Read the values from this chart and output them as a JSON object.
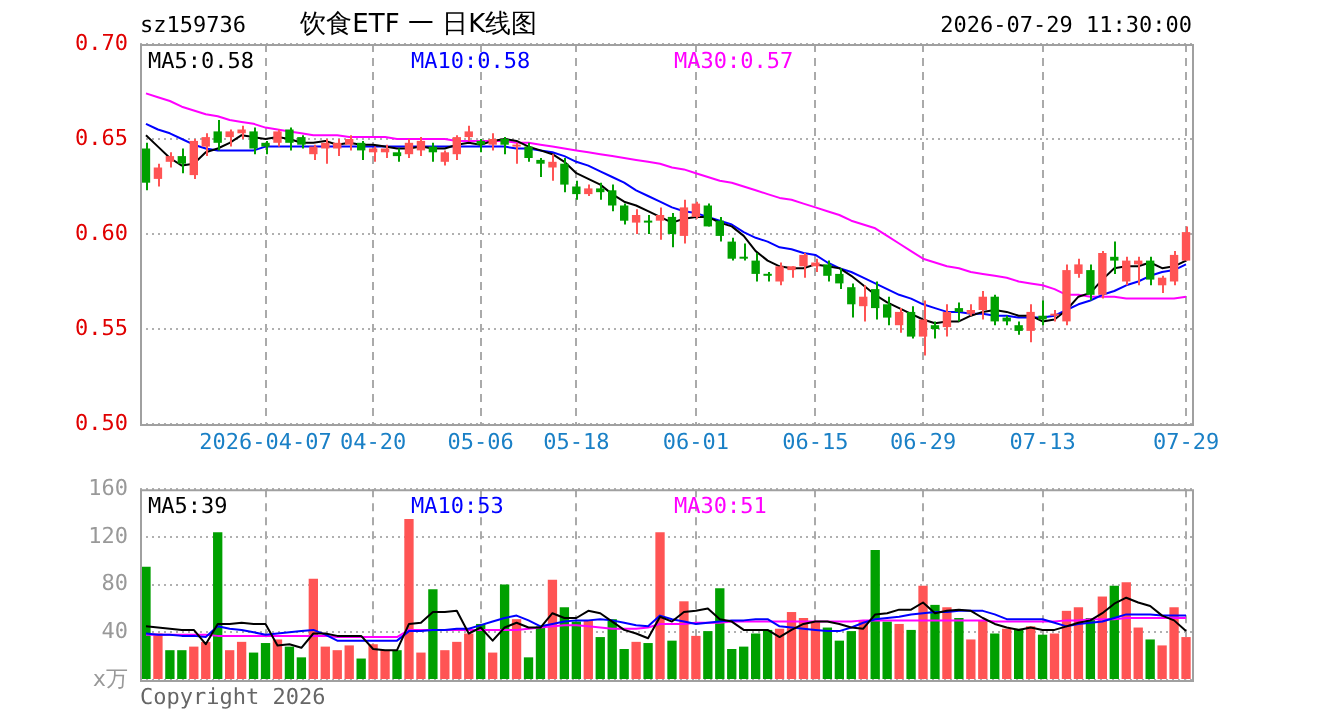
{
  "chart_data": [
    {
      "type": "candlestick",
      "title": "饮食ETF 一 日K线图",
      "annotations": [
        "sz159736",
        "2026-07-29 11:30:00"
      ],
      "categories": [
        null,
        null,
        null,
        null,
        null,
        null,
        null,
        null,
        null,
        null,
        "2026-04-07",
        null,
        null,
        null,
        null,
        null,
        null,
        null,
        null,
        "04-20",
        null,
        null,
        null,
        null,
        null,
        null,
        null,
        null,
        "05-06",
        null,
        null,
        null,
        null,
        null,
        null,
        null,
        "05-18",
        null,
        null,
        null,
        null,
        null,
        null,
        null,
        null,
        null,
        "06-01",
        null,
        null,
        null,
        null,
        null,
        null,
        null,
        null,
        null,
        "06-15",
        null,
        null,
        null,
        null,
        null,
        null,
        null,
        null,
        "06-29",
        null,
        null,
        null,
        null,
        null,
        null,
        null,
        null,
        null,
        "07-13",
        null,
        null,
        null,
        null,
        null,
        null,
        null,
        null,
        null,
        null,
        null,
        "07-29"
      ],
      "ylim": [
        0.5,
        0.7
      ],
      "yticks": [
        {
          "value": 0.5,
          "label": "0.50"
        },
        {
          "value": 0.55,
          "label": "0.55"
        },
        {
          "value": 0.6,
          "label": "0.60"
        },
        {
          "value": 0.65,
          "label": "0.65"
        },
        {
          "value": 0.7,
          "label": "0.70"
        }
      ],
      "grid": true,
      "legend": "top left",
      "marker": "none",
      "series": [
        {
          "type": "candlestick",
          "ohlc": [
            [
              0.645,
              0.648,
              0.623,
              0.627
            ],
            [
              0.629,
              0.637,
              0.625,
              0.635
            ],
            [
              0.638,
              0.643,
              0.635,
              0.641
            ],
            [
              0.641,
              0.645,
              0.632,
              0.637
            ],
            [
              0.631,
              0.65,
              0.629,
              0.649
            ],
            [
              0.646,
              0.653,
              0.641,
              0.651
            ],
            [
              0.654,
              0.66,
              0.644,
              0.648
            ],
            [
              0.651,
              0.655,
              0.646,
              0.654
            ],
            [
              0.653,
              0.657,
              0.65,
              0.655
            ],
            [
              0.654,
              0.656,
              0.642,
              0.645
            ],
            [
              0.648,
              0.649,
              0.642,
              0.646
            ],
            [
              0.648,
              0.655,
              0.646,
              0.654
            ],
            [
              0.655,
              0.656,
              0.644,
              0.648
            ],
            [
              0.651,
              0.652,
              0.645,
              0.647
            ],
            [
              0.642,
              0.647,
              0.639,
              0.646
            ],
            [
              0.645,
              0.65,
              0.637,
              0.648
            ],
            [
              0.645,
              0.65,
              0.641,
              0.648
            ],
            [
              0.647,
              0.652,
              0.644,
              0.65
            ],
            [
              0.648,
              0.649,
              0.639,
              0.644
            ],
            [
              0.643,
              0.646,
              0.638,
              0.645
            ],
            [
              0.643,
              0.647,
              0.64,
              0.645
            ],
            [
              0.643,
              0.645,
              0.638,
              0.641
            ],
            [
              0.642,
              0.65,
              0.64,
              0.648
            ],
            [
              0.644,
              0.651,
              0.641,
              0.649
            ],
            [
              0.646,
              0.648,
              0.638,
              0.643
            ],
            [
              0.638,
              0.644,
              0.636,
              0.643
            ],
            [
              0.642,
              0.652,
              0.639,
              0.651
            ],
            [
              0.651,
              0.657,
              0.649,
              0.654
            ],
            [
              0.649,
              0.65,
              0.643,
              0.647
            ],
            [
              0.647,
              0.653,
              0.644,
              0.65
            ],
            [
              0.65,
              0.651,
              0.642,
              0.647
            ],
            [
              0.646,
              0.648,
              0.637,
              0.647
            ],
            [
              0.646,
              0.648,
              0.638,
              0.64
            ],
            [
              0.639,
              0.64,
              0.63,
              0.637
            ],
            [
              0.635,
              0.642,
              0.628,
              0.638
            ],
            [
              0.637,
              0.64,
              0.622,
              0.626
            ],
            [
              0.625,
              0.628,
              0.618,
              0.621
            ],
            [
              0.621,
              0.626,
              0.62,
              0.624
            ],
            [
              0.624,
              0.627,
              0.618,
              0.622
            ],
            [
              0.623,
              0.626,
              0.612,
              0.615
            ],
            [
              0.615,
              0.616,
              0.605,
              0.607
            ],
            [
              0.606,
              0.613,
              0.6,
              0.61
            ],
            [
              0.607,
              0.61,
              0.6,
              0.606
            ],
            [
              0.607,
              0.614,
              0.597,
              0.61
            ],
            [
              0.609,
              0.611,
              0.593,
              0.6
            ],
            [
              0.599,
              0.618,
              0.595,
              0.614
            ],
            [
              0.609,
              0.617,
              0.608,
              0.616
            ],
            [
              0.615,
              0.616,
              0.604,
              0.604
            ],
            [
              0.607,
              0.609,
              0.596,
              0.599
            ],
            [
              0.596,
              0.598,
              0.586,
              0.587
            ],
            [
              0.588,
              0.595,
              0.586,
              0.587
            ],
            [
              0.586,
              0.59,
              0.575,
              0.579
            ],
            [
              0.579,
              0.58,
              0.575,
              0.578
            ],
            [
              0.575,
              0.585,
              0.573,
              0.583
            ],
            [
              0.581,
              0.583,
              0.577,
              0.583
            ],
            [
              0.583,
              0.59,
              0.577,
              0.589
            ],
            [
              0.583,
              0.587,
              0.58,
              0.585
            ],
            [
              0.584,
              0.586,
              0.575,
              0.578
            ],
            [
              0.579,
              0.582,
              0.571,
              0.574
            ],
            [
              0.572,
              0.574,
              0.556,
              0.563
            ],
            [
              0.562,
              0.573,
              0.554,
              0.567
            ],
            [
              0.571,
              0.575,
              0.555,
              0.561
            ],
            [
              0.563,
              0.567,
              0.552,
              0.556
            ],
            [
              0.552,
              0.561,
              0.548,
              0.559
            ],
            [
              0.559,
              0.562,
              0.545,
              0.546
            ],
            [
              0.546,
              0.565,
              0.536,
              0.555
            ],
            [
              0.552,
              0.554,
              0.545,
              0.55
            ],
            [
              0.551,
              0.563,
              0.546,
              0.559
            ],
            [
              0.561,
              0.564,
              0.554,
              0.559
            ],
            [
              0.558,
              0.563,
              0.557,
              0.56
            ],
            [
              0.56,
              0.57,
              0.555,
              0.567
            ],
            [
              0.567,
              0.568,
              0.552,
              0.554
            ],
            [
              0.556,
              0.557,
              0.552,
              0.554
            ],
            [
              0.552,
              0.554,
              0.547,
              0.549
            ],
            [
              0.549,
              0.563,
              0.543,
              0.559
            ],
            [
              0.557,
              0.565,
              0.552,
              0.555
            ],
            [
              0.557,
              0.56,
              0.554,
              0.558
            ],
            [
              0.554,
              0.584,
              0.552,
              0.581
            ],
            [
              0.579,
              0.587,
              0.577,
              0.584
            ],
            [
              0.581,
              0.584,
              0.565,
              0.568
            ],
            [
              0.568,
              0.591,
              0.566,
              0.59
            ],
            [
              0.588,
              0.596,
              0.579,
              0.586
            ],
            [
              0.575,
              0.588,
              0.573,
              0.586
            ],
            [
              0.584,
              0.588,
              0.573,
              0.586
            ],
            [
              0.586,
              0.588,
              0.573,
              0.576
            ],
            [
              0.573,
              0.578,
              0.569,
              0.577
            ],
            [
              0.575,
              0.591,
              0.573,
              0.589
            ],
            [
              0.586,
              0.604,
              0.586,
              0.601
            ]
          ],
          "colors": [
            "#00a000",
            "#ff5454",
            "#ff5454",
            "#00a000",
            "#ff5454",
            "#ff5454",
            "#00a000",
            "#ff5454",
            "#ff5454",
            "#00a000",
            "#00a000",
            "#ff5454",
            "#00a000",
            "#00a000",
            "#ff5454",
            "#ff5454",
            "#ff5454",
            "#ff5454",
            "#00a000",
            "#ff5454",
            "#ff5454",
            "#00a000",
            "#ff5454",
            "#ff5454",
            "#00a000",
            "#ff5454",
            "#ff5454",
            "#ff5454",
            "#00a000",
            "#ff5454",
            "#00a000",
            "#ff5454",
            "#00a000",
            "#00a000",
            "#ff5454",
            "#00a000",
            "#00a000",
            "#ff5454",
            "#00a000",
            "#00a000",
            "#00a000",
            "#ff5454",
            "#00a000",
            "#ff5454",
            "#00a000",
            "#ff5454",
            "#ff5454",
            "#00a000",
            "#00a000",
            "#00a000",
            "#00a000",
            "#00a000",
            "#00a000",
            "#ff5454",
            "#ff5454",
            "#ff5454",
            "#ff5454",
            "#00a000",
            "#00a000",
            "#00a000",
            "#ff5454",
            "#00a000",
            "#00a000",
            "#ff5454",
            "#00a000",
            "#ff5454",
            "#00a000",
            "#ff5454",
            "#00a000",
            "#ff5454",
            "#ff5454",
            "#00a000",
            "#00a000",
            "#00a000",
            "#ff5454",
            "#00a000",
            "#ff5454",
            "#ff5454",
            "#ff5454",
            "#00a000",
            "#ff5454",
            "#00a000",
            "#ff5454",
            "#ff5454",
            "#00a000",
            "#ff5454",
            "#ff5454",
            "#ff5454"
          ]
        },
        {
          "type": "line",
          "name": "MA5:0.58",
          "color": "#000000",
          "values": [
            0.652,
            0.646,
            0.64,
            0.636,
            0.637,
            0.643,
            0.645,
            0.648,
            0.652,
            0.651,
            0.65,
            0.651,
            0.65,
            0.648,
            0.648,
            0.649,
            0.647,
            0.648,
            0.647,
            0.647,
            0.646,
            0.645,
            0.645,
            0.646,
            0.645,
            0.645,
            0.647,
            0.648,
            0.647,
            0.649,
            0.65,
            0.649,
            0.646,
            0.644,
            0.642,
            0.638,
            0.632,
            0.629,
            0.626,
            0.621,
            0.617,
            0.615,
            0.612,
            0.609,
            0.606,
            0.608,
            0.609,
            0.609,
            0.606,
            0.604,
            0.599,
            0.591,
            0.586,
            0.583,
            0.582,
            0.582,
            0.584,
            0.583,
            0.582,
            0.578,
            0.573,
            0.568,
            0.564,
            0.561,
            0.558,
            0.555,
            0.553,
            0.554,
            0.554,
            0.557,
            0.559,
            0.56,
            0.559,
            0.557,
            0.557,
            0.554,
            0.555,
            0.56,
            0.567,
            0.569,
            0.576,
            0.582,
            0.583,
            0.583,
            0.585,
            0.582,
            0.583,
            0.586
          ]
        },
        {
          "type": "line",
          "name": "MA10:0.58",
          "color": "#0000ff",
          "values": [
            0.658,
            0.655,
            0.653,
            0.65,
            0.647,
            0.645,
            0.644,
            0.644,
            0.644,
            0.644,
            0.646,
            0.646,
            0.646,
            0.646,
            0.646,
            0.646,
            0.646,
            0.646,
            0.646,
            0.646,
            0.646,
            0.646,
            0.646,
            0.646,
            0.646,
            0.646,
            0.646,
            0.646,
            0.646,
            0.646,
            0.646,
            0.645,
            0.645,
            0.644,
            0.643,
            0.641,
            0.638,
            0.636,
            0.633,
            0.63,
            0.627,
            0.623,
            0.62,
            0.617,
            0.614,
            0.612,
            0.611,
            0.609,
            0.607,
            0.605,
            0.601,
            0.598,
            0.596,
            0.593,
            0.592,
            0.59,
            0.589,
            0.585,
            0.582,
            0.58,
            0.577,
            0.574,
            0.571,
            0.568,
            0.566,
            0.563,
            0.561,
            0.559,
            0.559,
            0.558,
            0.558,
            0.557,
            0.557,
            0.556,
            0.556,
            0.556,
            0.557,
            0.56,
            0.563,
            0.565,
            0.568,
            0.57,
            0.573,
            0.575,
            0.578,
            0.58,
            0.581,
            0.584
          ]
        },
        {
          "type": "line",
          "name": "MA30:0.57",
          "color": "#ff00ff",
          "values": [
            0.674,
            0.672,
            0.67,
            0.667,
            0.665,
            0.663,
            0.662,
            0.66,
            0.659,
            0.658,
            0.656,
            0.655,
            0.654,
            0.653,
            0.652,
            0.652,
            0.652,
            0.651,
            0.651,
            0.651,
            0.651,
            0.65,
            0.65,
            0.65,
            0.65,
            0.65,
            0.649,
            0.649,
            0.649,
            0.649,
            0.649,
            0.648,
            0.648,
            0.647,
            0.646,
            0.645,
            0.644,
            0.643,
            0.642,
            0.641,
            0.64,
            0.639,
            0.638,
            0.637,
            0.635,
            0.634,
            0.632,
            0.63,
            0.628,
            0.627,
            0.625,
            0.623,
            0.621,
            0.619,
            0.618,
            0.616,
            0.614,
            0.612,
            0.61,
            0.607,
            0.605,
            0.603,
            0.599,
            0.595,
            0.591,
            0.587,
            0.585,
            0.583,
            0.582,
            0.58,
            0.579,
            0.578,
            0.577,
            0.575,
            0.574,
            0.573,
            0.571,
            0.568,
            0.568,
            0.567,
            0.567,
            0.567,
            0.566,
            0.566,
            0.566,
            0.566,
            0.566,
            0.567
          ]
        }
      ]
    },
    {
      "type": "bar",
      "annotations": [
        "Copyright 2026"
      ],
      "categories": [
        null,
        null,
        null,
        null,
        null,
        null,
        null,
        null,
        null,
        null,
        null,
        null,
        null,
        null,
        null,
        null,
        null,
        null,
        null,
        null,
        null,
        null,
        null,
        null,
        null,
        null,
        null,
        null,
        null,
        null,
        null,
        null,
        null,
        null,
        null,
        null,
        null,
        null,
        null,
        null,
        null,
        null,
        null,
        null,
        null,
        null,
        null,
        null,
        null,
        null,
        null,
        null,
        null,
        null,
        null,
        null,
        null,
        null,
        null,
        null,
        null,
        null,
        null,
        null,
        null,
        null,
        null,
        null,
        null,
        null,
        null,
        null,
        null,
        null,
        null,
        null,
        null,
        null,
        null,
        null,
        null,
        null,
        null,
        null,
        null,
        null,
        null,
        null
      ],
      "tick_labels": "y",
      "ylim": [
        0,
        160
      ],
      "yticks": [
        {
          "value": 0,
          "label": "x万"
        },
        40,
        80,
        120,
        160
      ],
      "grid": true,
      "legend": "top left",
      "marker": "none",
      "series": [
        {
          "type": "bar",
          "values": [
            95,
            39,
            25,
            25,
            28,
            32,
            124,
            25,
            32,
            23,
            31,
            34,
            28,
            19,
            85,
            28,
            25,
            29,
            18,
            30,
            25,
            25,
            135,
            23,
            76,
            25,
            32,
            39,
            47,
            23,
            80,
            51,
            19,
            45,
            84,
            61,
            49,
            50,
            36,
            51,
            26,
            32,
            31,
            124,
            33,
            66,
            37,
            41,
            77,
            26,
            28,
            39,
            42,
            43,
            57,
            52,
            49,
            44,
            33,
            41,
            50,
            109,
            49,
            47,
            42,
            79,
            63,
            61,
            52,
            34,
            50,
            39,
            43,
            43,
            45,
            38,
            39,
            58,
            61,
            52,
            70,
            79,
            82,
            44,
            34,
            29,
            61,
            36
          ],
          "colors": [
            "#00a000",
            "#ff5454",
            "#00a000",
            "#00a000",
            "#ff5454",
            "#ff5454",
            "#00a000",
            "#ff5454",
            "#ff5454",
            "#00a000",
            "#00a000",
            "#ff5454",
            "#00a000",
            "#00a000",
            "#ff5454",
            "#ff5454",
            "#ff5454",
            "#ff5454",
            "#00a000",
            "#ff5454",
            "#ff5454",
            "#00a000",
            "#ff5454",
            "#ff5454",
            "#00a000",
            "#ff5454",
            "#ff5454",
            "#ff5454",
            "#00a000",
            "#ff5454",
            "#00a000",
            "#ff5454",
            "#00a000",
            "#00a000",
            "#ff5454",
            "#00a000",
            "#00a000",
            "#ff5454",
            "#00a000",
            "#00a000",
            "#00a000",
            "#ff5454",
            "#00a000",
            "#ff5454",
            "#00a000",
            "#ff5454",
            "#ff5454",
            "#00a000",
            "#00a000",
            "#00a000",
            "#00a000",
            "#00a000",
            "#00a000",
            "#ff5454",
            "#ff5454",
            "#ff5454",
            "#ff5454",
            "#00a000",
            "#00a000",
            "#00a000",
            "#ff5454",
            "#00a000",
            "#00a000",
            "#ff5454",
            "#00a000",
            "#ff5454",
            "#00a000",
            "#ff5454",
            "#00a000",
            "#ff5454",
            "#ff5454",
            "#00a000",
            "#ff5454",
            "#00a000",
            "#ff5454",
            "#00a000",
            "#ff5454",
            "#ff5454",
            "#ff5454",
            "#00a000",
            "#ff5454",
            "#00a000",
            "#ff5454",
            "#ff5454",
            "#00a000",
            "#ff5454",
            "#ff5454",
            "#ff5454"
          ]
        },
        {
          "type": "line",
          "name": "MA5:39",
          "color": "#000000",
          "values": [
            45,
            44,
            43,
            42,
            42,
            30,
            47,
            47,
            48,
            47,
            47,
            29,
            30,
            27,
            39,
            39,
            37,
            37,
            37,
            26,
            25,
            25,
            47,
            48,
            57,
            57,
            58,
            39,
            44,
            33,
            44,
            48,
            44,
            44,
            56,
            52,
            52,
            58,
            56,
            49,
            42,
            39,
            35,
            53,
            49,
            57,
            58,
            60,
            51,
            49,
            42,
            42,
            42,
            36,
            42,
            47,
            49,
            49,
            47,
            44,
            43,
            55,
            56,
            59,
            59,
            65,
            56,
            58,
            59,
            58,
            52,
            47,
            44,
            42,
            44,
            42,
            42,
            45,
            48,
            50,
            56,
            64,
            69,
            65,
            62,
            54,
            50,
            41
          ]
        },
        {
          "type": "line",
          "name": "MA10:53",
          "color": "#0000ff",
          "values": [
            39,
            38,
            38,
            37,
            37,
            36,
            45,
            43,
            42,
            40,
            38,
            39,
            40,
            41,
            42,
            38,
            33,
            33,
            33,
            33,
            33,
            33,
            41,
            41,
            42,
            42,
            43,
            43,
            46,
            49,
            52,
            54,
            50,
            45,
            47,
            49,
            50,
            50,
            51,
            50,
            48,
            46,
            45,
            54,
            51,
            49,
            47,
            48,
            49,
            50,
            50,
            51,
            51,
            45,
            44,
            43,
            42,
            41,
            41,
            44,
            48,
            51,
            52,
            53,
            55,
            56,
            57,
            57,
            58,
            58,
            58,
            55,
            51,
            51,
            51,
            51,
            48,
            45,
            47,
            48,
            49,
            52,
            55,
            55,
            55,
            54,
            54,
            54
          ]
        },
        {
          "type": "line",
          "name": "MA30:51",
          "color": "#ff00ff",
          "values": [
            38,
            38,
            38,
            38,
            38,
            38,
            37,
            37,
            37,
            37,
            37,
            37,
            37,
            37,
            37,
            37,
            36,
            36,
            36,
            36,
            36,
            36,
            42,
            42,
            42,
            42,
            42,
            42,
            42,
            42,
            42,
            42,
            43,
            44,
            45,
            46,
            46,
            45,
            44,
            43,
            43,
            43,
            44,
            47,
            47,
            47,
            48,
            48,
            48,
            49,
            49,
            49,
            49,
            49,
            49,
            49,
            49,
            49,
            49,
            49,
            50,
            50,
            50,
            50,
            50,
            50,
            50,
            50,
            50,
            50,
            50,
            49,
            49,
            49,
            49,
            49,
            49,
            50,
            50,
            51,
            51,
            51,
            52,
            52,
            52,
            52,
            52,
            52
          ]
        }
      ]
    }
  ]
}
